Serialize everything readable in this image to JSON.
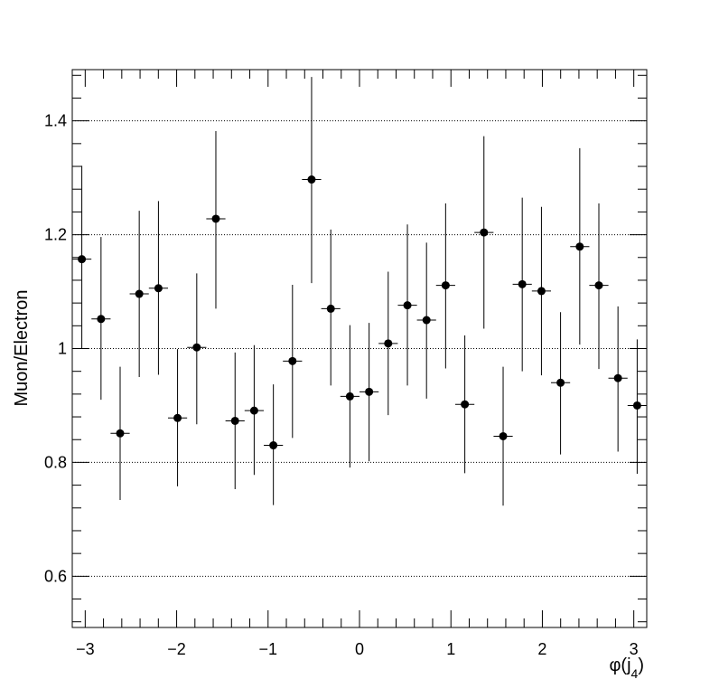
{
  "chart_data": {
    "type": "scatter",
    "xlabel": "φ(j",
    "xlabel_sub": "4",
    "xlabel_close": ")",
    "ylabel": "Muon/Electron",
    "xlim": [
      -3.1416,
      3.1416
    ],
    "ylim": [
      0.51,
      1.49
    ],
    "xticks": [
      -3,
      -2,
      -1,
      0,
      1,
      2,
      3
    ],
    "xtick_labels": [
      "−3",
      "−2",
      "−1",
      "0",
      "1",
      "2",
      "3"
    ],
    "yticks": [
      0.6,
      0.8,
      1.0,
      1.2,
      1.4
    ],
    "ytick_labels": [
      "0.6",
      "0.8",
      "1",
      "1.2",
      "1.4"
    ],
    "grid": "horizontal dotted at major y ticks",
    "bin_half_width": 0.1047,
    "series": [
      {
        "x": [
          -3.037,
          -2.827,
          -2.618,
          -2.409,
          -2.199,
          -1.99,
          -1.78,
          -1.571,
          -1.361,
          -1.152,
          -0.942,
          -0.733,
          -0.524,
          -0.314,
          -0.105,
          0.105,
          0.314,
          0.524,
          0.733,
          0.942,
          1.152,
          1.361,
          1.571,
          1.78,
          1.99,
          2.199,
          2.409,
          2.618,
          2.827,
          3.037
        ],
        "y": [
          1.157,
          1.052,
          0.851,
          1.096,
          1.106,
          0.878,
          1.002,
          1.228,
          0.873,
          0.891,
          0.83,
          0.978,
          1.297,
          1.07,
          0.916,
          0.924,
          1.009,
          1.076,
          1.05,
          1.111,
          0.902,
          1.204,
          0.846,
          1.113,
          1.101,
          0.94,
          1.179,
          1.111,
          0.948,
          0.9
        ],
        "err_low": [
          0.157,
          0.142,
          0.117,
          0.146,
          0.152,
          0.12,
          0.135,
          0.158,
          0.12,
          0.113,
          0.105,
          0.135,
          0.182,
          0.135,
          0.125,
          0.122,
          0.126,
          0.141,
          0.138,
          0.146,
          0.121,
          0.169,
          0.122,
          0.153,
          0.148,
          0.126,
          0.172,
          0.147,
          0.129,
          0.12
        ],
        "err_high": [
          0.164,
          0.144,
          0.117,
          0.146,
          0.153,
          0.121,
          0.13,
          0.154,
          0.12,
          0.115,
          0.107,
          0.134,
          0.18,
          0.139,
          0.125,
          0.121,
          0.126,
          0.142,
          0.136,
          0.144,
          0.121,
          0.169,
          0.122,
          0.152,
          0.148,
          0.124,
          0.173,
          0.144,
          0.126,
          0.116
        ]
      }
    ]
  }
}
